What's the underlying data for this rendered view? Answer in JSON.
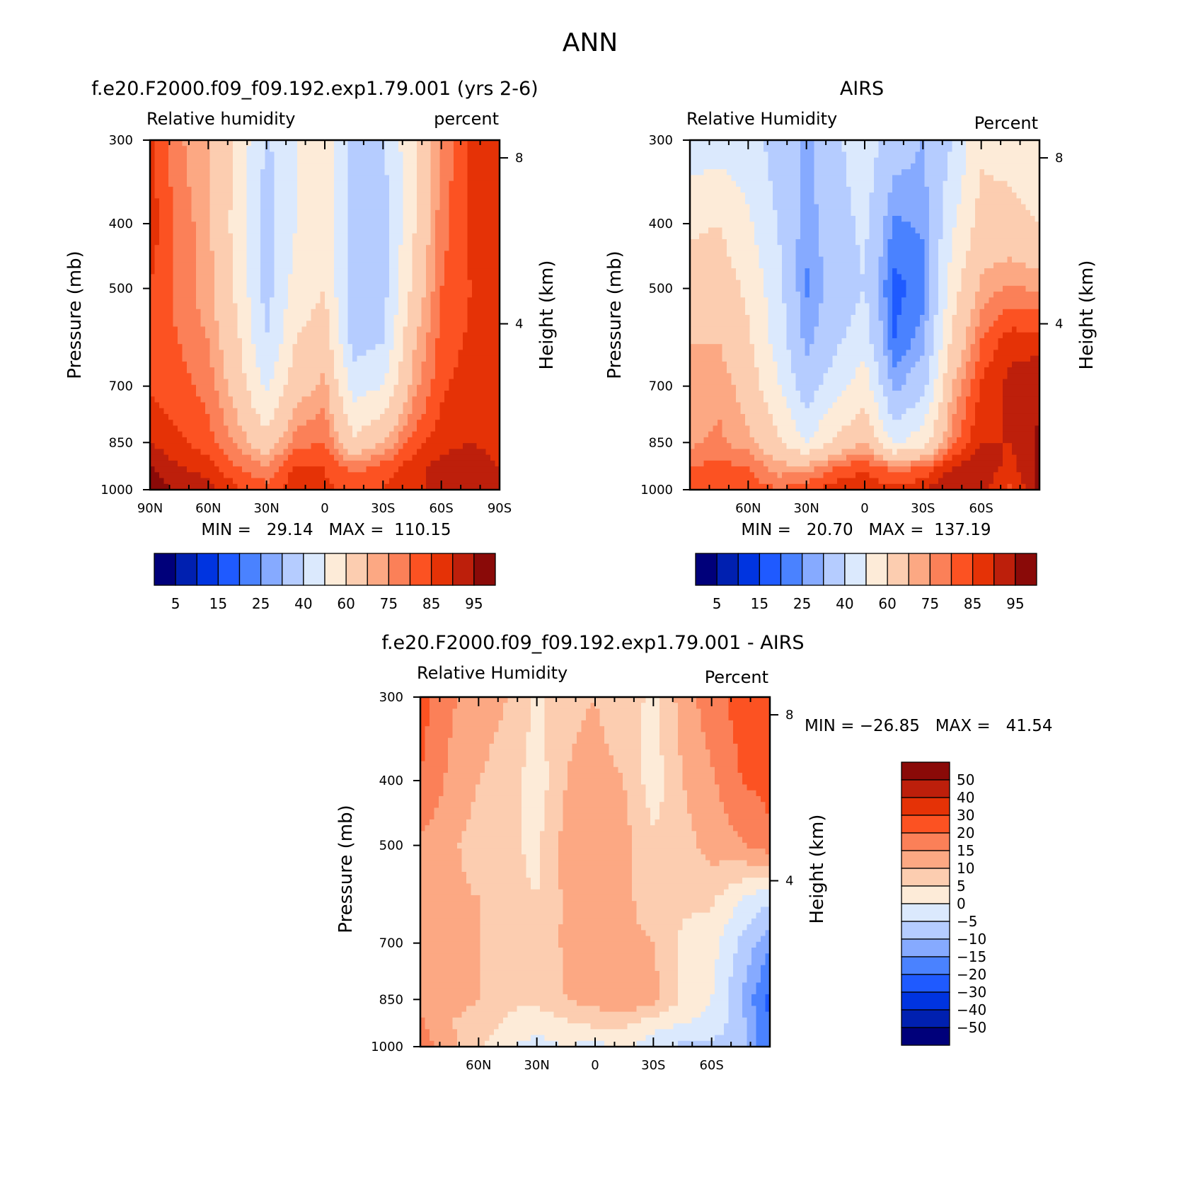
{
  "main_title": "ANN",
  "colors": {
    "rh_scale": [
      "#00007a",
      "#0020b0",
      "#0034e0",
      "#1f5aff",
      "#4a82ff",
      "#86aaff",
      "#b5ccff",
      "#dbe9fd",
      "#fdebd8",
      "#fccdb0",
      "#fca883",
      "#fb8058",
      "#fc5222",
      "#e53206",
      "#bd1f0b",
      "#8a0a08"
    ],
    "diff_scale": [
      "#00007a",
      "#0020b0",
      "#0034e0",
      "#1f5aff",
      "#4a82ff",
      "#86aaff",
      "#b5ccff",
      "#dbe9fd",
      "#fdebd8",
      "#fccdb0",
      "#fca883",
      "#fb8058",
      "#fc5222",
      "#e53206",
      "#bd1f0b",
      "#8a0a08"
    ]
  },
  "chart_data": [
    {
      "id": "model",
      "type": "heatmap",
      "title": "f.e20.F2000.f09_f09.192.exp1.79.001 (yrs 2-6)",
      "left_label": "Relative humidity",
      "right_label": "percent",
      "ylabel": "Pressure (mb)",
      "ylabel_right": "Height (km)",
      "x_ticks": [
        "90N",
        "60N",
        "30N",
        "0",
        "30S",
        "60S",
        "90S"
      ],
      "y_ticks": [
        "300",
        "400",
        "500",
        "700",
        "850",
        "1000"
      ],
      "y_right_ticks": [
        "8",
        "4"
      ],
      "min_max": "MIN =   29.14   MAX =  110.15",
      "xlim": [
        90,
        -90
      ],
      "ylim": [
        1000,
        300
      ],
      "min": 29.14,
      "max": 110.15,
      "colorbar": {
        "orientation": "horizontal",
        "levels": [
          5,
          10,
          15,
          20,
          25,
          30,
          40,
          50,
          60,
          70,
          75,
          80,
          85,
          90,
          95
        ],
        "labels": [
          "5",
          "15",
          "25",
          "40",
          "60",
          "75",
          "85",
          "95"
        ]
      },
      "profile": {
        "lat": [
          90,
          75,
          60,
          45,
          30,
          15,
          0,
          -15,
          -30,
          -45,
          -60,
          -75,
          -90
        ],
        "p": [
          300,
          400,
          500,
          600,
          700,
          850,
          925,
          1000
        ],
        "values": [
          [
            86,
            88,
            85,
            83,
            84,
            90,
            96,
            99
          ],
          [
            76,
            78,
            78,
            80,
            82,
            86,
            90,
            94
          ],
          [
            70,
            72,
            72,
            75,
            78,
            82,
            88,
            92
          ],
          [
            58,
            56,
            58,
            62,
            66,
            74,
            80,
            86
          ],
          [
            38,
            36,
            36,
            40,
            48,
            64,
            76,
            82
          ],
          [
            50,
            50,
            54,
            60,
            66,
            78,
            86,
            88
          ],
          [
            58,
            56,
            60,
            66,
            72,
            80,
            85,
            86
          ],
          [
            36,
            34,
            32,
            36,
            46,
            62,
            78,
            84
          ],
          [
            38,
            36,
            36,
            40,
            50,
            70,
            82,
            85
          ],
          [
            58,
            58,
            62,
            68,
            72,
            82,
            88,
            88
          ],
          [
            76,
            78,
            80,
            82,
            84,
            88,
            92,
            92
          ],
          [
            86,
            86,
            85,
            86,
            88,
            90,
            94,
            94
          ],
          [
            88,
            88,
            86,
            86,
            86,
            88,
            90,
            90
          ]
        ]
      }
    },
    {
      "id": "obs",
      "type": "heatmap",
      "title": "AIRS",
      "left_label": "Relative Humidity",
      "right_label": "Percent",
      "ylabel": "Pressure (mb)",
      "ylabel_right": "Height (km)",
      "x_ticks": [
        "60N",
        "30N",
        "0",
        "30S",
        "60S"
      ],
      "y_ticks": [
        "300",
        "400",
        "500",
        "700",
        "850",
        "1000"
      ],
      "y_right_ticks": [
        "8",
        "4"
      ],
      "min_max": "MIN =   20.70   MAX =  137.19",
      "xlim": [
        90,
        -90
      ],
      "ylim": [
        1000,
        300
      ],
      "min": 20.7,
      "max": 137.19,
      "colorbar": {
        "orientation": "horizontal",
        "levels": [
          5,
          10,
          15,
          20,
          25,
          30,
          40,
          50,
          60,
          70,
          75,
          80,
          85,
          90,
          95
        ],
        "labels": [
          "5",
          "15",
          "25",
          "40",
          "60",
          "75",
          "85",
          "95"
        ]
      },
      "profile": {
        "lat": [
          90,
          75,
          60,
          45,
          30,
          15,
          0,
          -15,
          -30,
          -45,
          -60,
          -75,
          -90
        ],
        "p": [
          300,
          400,
          500,
          600,
          700,
          850,
          925,
          1000
        ],
        "values": [
          [
            44,
            58,
            66,
            70,
            72,
            74,
            80,
            82
          ],
          [
            46,
            60,
            66,
            70,
            74,
            76,
            82,
            84
          ],
          [
            44,
            52,
            58,
            62,
            66,
            72,
            80,
            84
          ],
          [
            36,
            40,
            44,
            46,
            52,
            62,
            72,
            80
          ],
          [
            28,
            26,
            24,
            28,
            34,
            50,
            72,
            84
          ],
          [
            38,
            36,
            34,
            38,
            46,
            62,
            80,
            88
          ],
          [
            46,
            42,
            40,
            46,
            56,
            70,
            84,
            90
          ],
          [
            34,
            24,
            18,
            20,
            28,
            48,
            78,
            86
          ],
          [
            30,
            26,
            22,
            28,
            36,
            56,
            80,
            90
          ],
          [
            40,
            48,
            56,
            62,
            70,
            78,
            90,
            96
          ],
          [
            58,
            64,
            72,
            80,
            86,
            90,
            94,
            92
          ],
          [
            56,
            64,
            76,
            88,
            92,
            90,
            88,
            84
          ],
          [
            52,
            60,
            74,
            88,
            94,
            96,
            96,
            96
          ]
        ]
      }
    },
    {
      "id": "diff",
      "type": "heatmap",
      "title": "f.e20.F2000.f09_f09.192.exp1.79.001 - AIRS",
      "left_label": "Relative Humidity",
      "right_label": "Percent",
      "ylabel": "Pressure (mb)",
      "ylabel_right": "Height (km)",
      "x_ticks": [
        "60N",
        "30N",
        "0",
        "30S",
        "60S"
      ],
      "y_ticks": [
        "300",
        "400",
        "500",
        "700",
        "850",
        "1000"
      ],
      "y_right_ticks": [
        "8",
        "4"
      ],
      "min_max": "MIN = −26.85   MAX =   41.54",
      "xlim": [
        90,
        -90
      ],
      "ylim": [
        1000,
        300
      ],
      "min": -26.85,
      "max": 41.54,
      "colorbar": {
        "orientation": "vertical",
        "levels": [
          -50,
          -40,
          -30,
          -20,
          -15,
          -10,
          -5,
          0,
          5,
          10,
          15,
          20,
          30,
          40,
          50
        ],
        "labels": [
          "50",
          "40",
          "30",
          "20",
          "15",
          "10",
          "5",
          "0",
          "−5",
          "−10",
          "−15",
          "−20",
          "−30",
          "−40",
          "−50"
        ]
      },
      "profile": {
        "lat": [
          90,
          75,
          60,
          45,
          30,
          15,
          0,
          -15,
          -30,
          -45,
          -60,
          -75,
          -90
        ],
        "p": [
          300,
          400,
          500,
          600,
          700,
          850,
          925,
          1000
        ],
        "values": [
          [
            22,
            20,
            14,
            13,
            12,
            14,
            16,
            18
          ],
          [
            16,
            14,
            11,
            11,
            10,
            12,
            10,
            12
          ],
          [
            12,
            10,
            8,
            10,
            10,
            10,
            8,
            6
          ],
          [
            10,
            8,
            6,
            6,
            6,
            6,
            4,
            0
          ],
          [
            4,
            2,
            4,
            5,
            6,
            6,
            2,
            -2
          ],
          [
            9,
            10,
            12,
            11,
            11,
            10,
            4,
            0
          ],
          [
            10,
            12,
            15,
            14,
            12,
            12,
            6,
            -2
          ],
          [
            7,
            10,
            12,
            11,
            11,
            14,
            6,
            2
          ],
          [
            4,
            2,
            6,
            8,
            10,
            12,
            2,
            -4
          ],
          [
            12,
            10,
            8,
            6,
            4,
            4,
            0,
            -6
          ],
          [
            18,
            14,
            12,
            6,
            2,
            0,
            -2,
            -6
          ],
          [
            22,
            20,
            14,
            0,
            -6,
            -10,
            -8,
            -8
          ],
          [
            26,
            22,
            18,
            -4,
            -14,
            -22,
            -20,
            -20
          ]
        ]
      }
    }
  ]
}
